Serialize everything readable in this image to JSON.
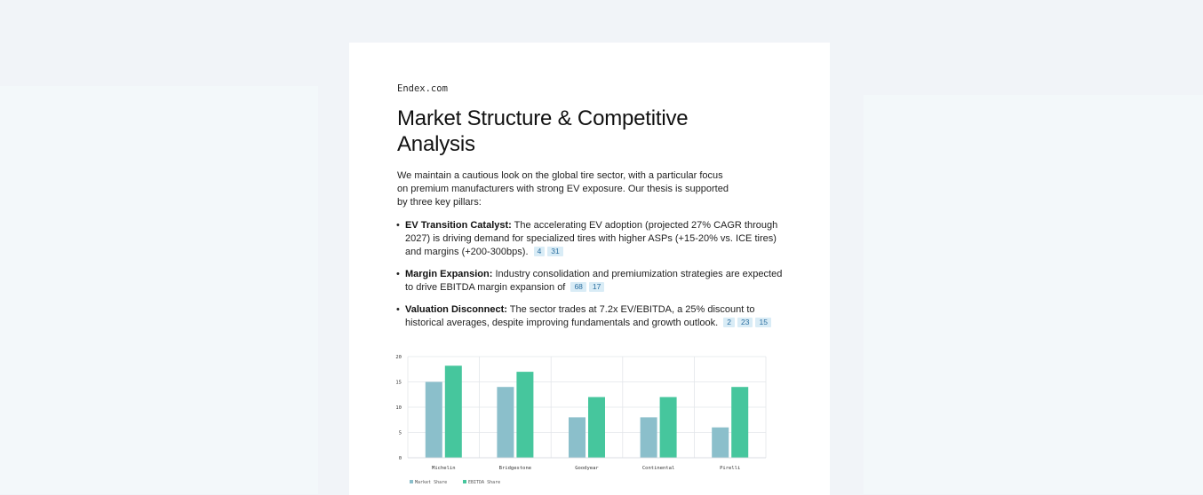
{
  "brand": "Endex.com",
  "title": "Market Structure & Competitive Analysis",
  "intro": "We maintain a cautious look on the global tire sector, with a particular focus on premium manufacturers with strong EV exposure. Our thesis is supported by three key pillars:",
  "bullets": [
    {
      "title": "EV Transition Catalyst:",
      "text": "The accelerating EV adoption (projected 27% CAGR through 2027) is driving demand for specialized tires with higher ASPs (+15-20% vs. ICE tires) and margins (+200-300bps).",
      "citations": [
        "4",
        "31"
      ]
    },
    {
      "title": "Margin Expansion:",
      "text": "Industry consolidation and premiumization strategies are expected to drive EBITDA margin expansion of",
      "citations": [
        "68",
        "17"
      ]
    },
    {
      "title": "Valuation Disconnect:",
      "text": "The sector trades at 7.2x EV/EBITDA, a 25% discount to historical averages, despite improving fundamentals and growth outlook.",
      "citations": [
        "2",
        "23",
        "15"
      ]
    }
  ],
  "chart_data": {
    "type": "bar",
    "categories": [
      "Michelin",
      "Bridgestone",
      "Goodyear",
      "Continental",
      "Pirelli"
    ],
    "series": [
      {
        "name": "Market Share",
        "values": [
          15,
          14,
          8,
          8,
          6
        ],
        "color": "#8bbfcb"
      },
      {
        "name": "EBITDA Share",
        "values": [
          18.2,
          17,
          12,
          12,
          14
        ],
        "color": "#46c69d"
      }
    ],
    "yticks": [
      "0",
      "5",
      "10",
      "15",
      "20"
    ],
    "ylim": [
      0,
      20
    ],
    "grid": true,
    "legend_position": "bottom-left"
  }
}
